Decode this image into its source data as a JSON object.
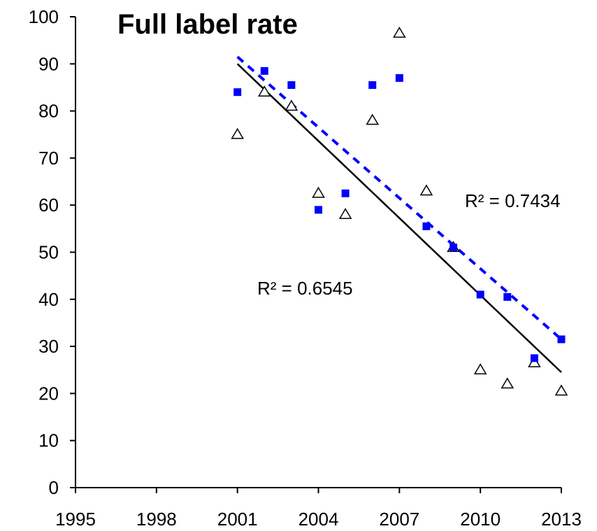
{
  "chart_data": {
    "type": "scatter",
    "title": "Full label rate",
    "xlabel": "",
    "ylabel": "",
    "xlim": [
      1995,
      2013
    ],
    "ylim": [
      0,
      100
    ],
    "x_ticks": [
      1995,
      1998,
      2001,
      2004,
      2007,
      2010,
      2013
    ],
    "y_ticks": [
      0,
      10,
      20,
      30,
      40,
      50,
      60,
      70,
      80,
      90,
      100
    ],
    "grid": false,
    "legend": "none",
    "series": [
      {
        "marker": "open-triangle",
        "color": "#000000",
        "points": [
          {
            "x": 2001,
            "y": 75
          },
          {
            "x": 2002,
            "y": 84
          },
          {
            "x": 2003,
            "y": 81
          },
          {
            "x": 2004,
            "y": 62.5
          },
          {
            "x": 2005,
            "y": 58
          },
          {
            "x": 2006,
            "y": 78
          },
          {
            "x": 2007,
            "y": 96.5
          },
          {
            "x": 2008,
            "y": 63
          },
          {
            "x": 2009,
            "y": 51
          },
          {
            "x": 2010,
            "y": 25
          },
          {
            "x": 2011,
            "y": 22
          },
          {
            "x": 2012,
            "y": 26.5
          },
          {
            "x": 2013,
            "y": 20.5
          }
        ]
      },
      {
        "marker": "filled-square",
        "color": "#0000ff",
        "points": [
          {
            "x": 2001,
            "y": 84
          },
          {
            "x": 2002,
            "y": 88.5
          },
          {
            "x": 2003,
            "y": 85.5
          },
          {
            "x": 2004,
            "y": 59
          },
          {
            "x": 2005,
            "y": 62.5
          },
          {
            "x": 2006,
            "y": 85.5
          },
          {
            "x": 2007,
            "y": 87
          },
          {
            "x": 2008,
            "y": 55.5
          },
          {
            "x": 2009,
            "y": 51
          },
          {
            "x": 2010,
            "y": 41
          },
          {
            "x": 2011,
            "y": 40.5
          },
          {
            "x": 2012,
            "y": 27.5
          },
          {
            "x": 2013,
            "y": 31.5
          }
        ]
      }
    ],
    "trendlines": [
      {
        "style": "solid",
        "color": "#000000",
        "from": {
          "x": 2001,
          "y": 90
        },
        "to": {
          "x": 2013,
          "y": 24.5
        }
      },
      {
        "style": "dashed",
        "color": "#0000ff",
        "from": {
          "x": 2001,
          "y": 91.5
        },
        "to": {
          "x": 2013,
          "y": 31.5
        }
      }
    ],
    "annotations": [
      {
        "text": "R² = 0.7434"
      },
      {
        "text": "R² = 0.6545"
      }
    ]
  }
}
